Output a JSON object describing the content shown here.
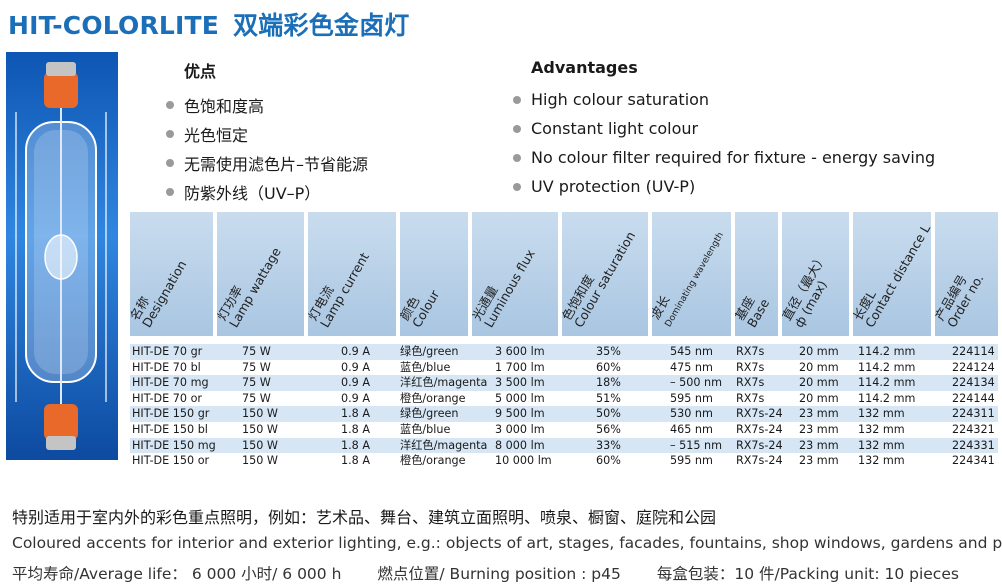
{
  "title": {
    "en": "HIT-COLORLITE",
    "cn": "双端彩色金卤灯"
  },
  "advantages_cn": {
    "heading": "优点",
    "items": [
      "色饱和度高",
      "光色恒定",
      "无需使用滤色片–节省能源",
      "防紫外线（UV–P）"
    ]
  },
  "advantages_en": {
    "heading": "Advantages",
    "items": [
      "High colour saturation",
      "Constant light colour",
      "No colour filter required for fixture - energy saving",
      "UV protection (UV-P)"
    ]
  },
  "table": {
    "headers": [
      {
        "cn": "名称",
        "en": "Designation"
      },
      {
        "cn": "灯功率",
        "en": "Lamp wattage"
      },
      {
        "cn": "灯电流",
        "en": "Lamp current"
      },
      {
        "cn": "颜色",
        "en": "Colour"
      },
      {
        "cn": "光通量",
        "en": "Luminous flux"
      },
      {
        "cn": "色饱和度",
        "en": "Colour saturation"
      },
      {
        "cn": "波长",
        "en": "Dominating wavelength"
      },
      {
        "cn": "基座",
        "en": "Base"
      },
      {
        "cn": "直径（最大）",
        "en": "ф (max)"
      },
      {
        "cn": "长度L",
        "en": "Contact distance L"
      },
      {
        "cn": "产品编号",
        "en": "Order no."
      }
    ],
    "rows": [
      [
        "HIT-DE 70 gr",
        "75 W",
        "0.9 A",
        "绿色/green",
        "3 600 lm",
        "35%",
        "545 nm",
        "RX7s",
        "20 mm",
        "114.2 mm",
        "224114"
      ],
      [
        "HIT-DE 70 bl",
        "75 W",
        "0.9 A",
        "蓝色/blue",
        "1 700 lm",
        "60%",
        "475 nm",
        "RX7s",
        "20 mm",
        "114.2 mm",
        "224124"
      ],
      [
        "HIT-DE 70 mg",
        "75 W",
        "0.9 A",
        "洋红色/magenta",
        "3 500 lm",
        "18%",
        "– 500 nm",
        "RX7s",
        "20 mm",
        "114.2 mm",
        "224134"
      ],
      [
        "HIT-DE 70 or",
        "75 W",
        "0.9 A",
        "橙色/orange",
        "5 000 lm",
        "51%",
        "595 nm",
        "RX7s",
        "20 mm",
        "114.2 mm",
        "224144"
      ],
      [
        "HIT-DE 150 gr",
        "150 W",
        "1.8 A",
        "绿色/green",
        "9 500 lm",
        "50%",
        "530 nm",
        "RX7s-24",
        "23 mm",
        "132 mm",
        "224311"
      ],
      [
        "HIT-DE 150 bl",
        "150 W",
        "1.8 A",
        "蓝色/blue",
        "3 000 lm",
        "56%",
        "465 nm",
        "RX7s-24",
        "23 mm",
        "132 mm",
        "224321"
      ],
      [
        "HIT-DE 150 mg",
        "150 W",
        "1.8 A",
        "洋红色/magenta",
        "8 000 lm",
        "33%",
        "– 515 nm",
        "RX7s-24",
        "23 mm",
        "132 mm",
        "224331"
      ],
      [
        "HIT-DE 150 or",
        "150 W",
        "1.8 A",
        "橙色/orange",
        "10 000 lm",
        "60%",
        "595 nm",
        "RX7s-24",
        "23 mm",
        "132 mm",
        "224341"
      ]
    ]
  },
  "applications_cn": "特别适用于室内外的彩色重点照明，例如：艺术品、舞台、建筑立面照明、喷泉、橱窗、庭院和公园",
  "applications_en": "Coloured accents for interior and exterior lighting, e.g.: objects of art, stages, facades, fountains, shop windows, gardens and parks",
  "footer": {
    "life": "平均寿命/Average life：  6 000 小时/ 6 000 h",
    "burning": "燃点位置/ Burning position : p45",
    "packing": "每盒包装：10 件/Packing unit: 10 pieces"
  },
  "colors": {
    "title": "#1b6fb8",
    "header_bg": "#b6cfe7",
    "row_stripe": "#d6e6f4",
    "photo_bg": "#1f6fd0"
  }
}
